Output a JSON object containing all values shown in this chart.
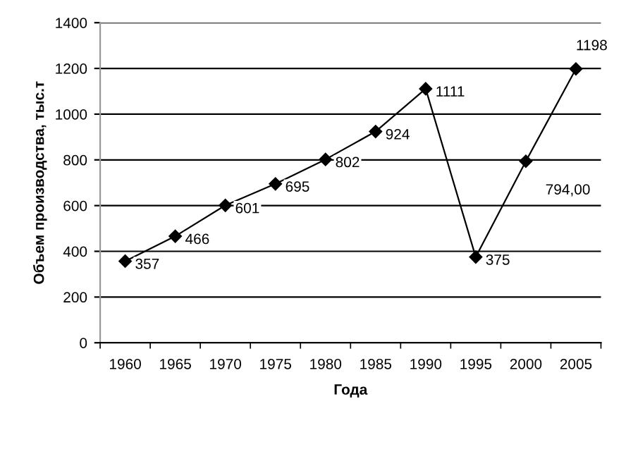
{
  "chart_data": {
    "type": "line",
    "xlabel": "Года",
    "ylabel": "Объем производства, тыс.т",
    "categories": [
      "1960",
      "1965",
      "1970",
      "1975",
      "1980",
      "1985",
      "1990",
      "1995",
      "2000",
      "2005"
    ],
    "series": [
      {
        "color": "#000000",
        "values": [
          357,
          466,
          601,
          695,
          802,
          924,
          1111,
          375,
          794,
          1198
        ],
        "value_labels": [
          "357",
          "466",
          "601",
          "695",
          "802",
          "924",
          "1111",
          "375",
          "794,00",
          "1198"
        ]
      }
    ],
    "ylim": [
      0,
      1400
    ],
    "yticks": [
      0,
      200,
      400,
      600,
      800,
      1000,
      1200,
      1400
    ],
    "grid": "y",
    "marker": "diamond",
    "line_style": "solid"
  }
}
